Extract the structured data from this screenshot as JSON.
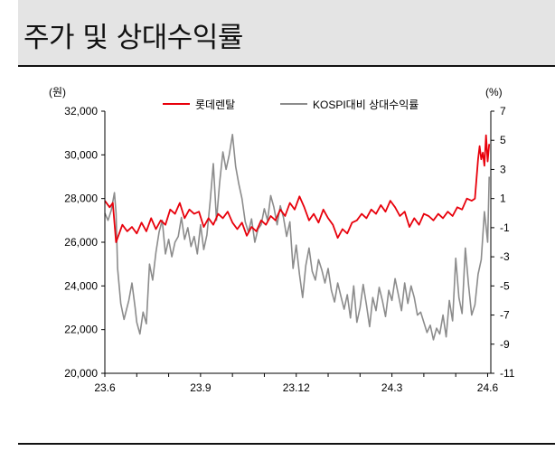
{
  "title": "주가 및 상대수익률",
  "chart_data": {
    "type": "line",
    "left_unit": "(원)",
    "right_unit": "(%)",
    "left_ylim": [
      20000,
      32000
    ],
    "right_ylim": [
      -11,
      7
    ],
    "left_ticks": [
      20000,
      22000,
      24000,
      26000,
      28000,
      30000,
      32000
    ],
    "left_tick_labels": [
      "20,000",
      "22,000",
      "24,000",
      "26,000",
      "28,000",
      "30,000",
      "32,000"
    ],
    "right_ticks": [
      7,
      5,
      3,
      1,
      -1,
      -3,
      -5,
      -7,
      -9,
      -11
    ],
    "right_tick_labels": [
      "7",
      "5",
      "3",
      "1",
      "-1",
      "-3",
      "-5",
      "-7",
      "-9",
      "-11"
    ],
    "x_ticks": [
      "23.6",
      "23.9",
      "23.12",
      "24.3",
      "24.6"
    ],
    "x_tick_positions": [
      0,
      3,
      6,
      9,
      12
    ],
    "x_range": [
      0,
      12.1
    ],
    "legend_position": "top",
    "grid": false,
    "series": [
      {
        "name": "롯데렌탈",
        "axis": "left",
        "color": "#e8000b",
        "x": [
          0,
          0.15,
          0.25,
          0.35,
          0.45,
          0.55,
          0.7,
          0.85,
          1.0,
          1.15,
          1.3,
          1.45,
          1.6,
          1.75,
          1.9,
          2.05,
          2.2,
          2.35,
          2.5,
          2.65,
          2.8,
          2.95,
          3.1,
          3.25,
          3.4,
          3.55,
          3.7,
          3.85,
          4.0,
          4.15,
          4.3,
          4.45,
          4.6,
          4.75,
          4.9,
          5.05,
          5.2,
          5.35,
          5.5,
          5.65,
          5.8,
          5.95,
          6.1,
          6.25,
          6.4,
          6.55,
          6.7,
          6.85,
          7.0,
          7.15,
          7.3,
          7.45,
          7.6,
          7.75,
          7.9,
          8.05,
          8.2,
          8.35,
          8.5,
          8.65,
          8.8,
          8.95,
          9.1,
          9.25,
          9.4,
          9.55,
          9.7,
          9.85,
          10.0,
          10.15,
          10.3,
          10.45,
          10.6,
          10.75,
          10.9,
          11.05,
          11.2,
          11.35,
          11.5,
          11.6,
          11.7,
          11.75,
          11.8,
          11.85,
          11.9,
          11.95,
          12.0,
          12.05
        ],
        "values": [
          27900,
          27600,
          27800,
          26000,
          26400,
          26800,
          26500,
          26700,
          26400,
          26900,
          26500,
          27100,
          26600,
          27000,
          26800,
          27500,
          27300,
          27800,
          27100,
          27500,
          27300,
          27400,
          26700,
          27100,
          26800,
          27300,
          27100,
          27400,
          26900,
          26600,
          26900,
          26300,
          26700,
          26500,
          27000,
          26800,
          27200,
          27000,
          27500,
          27200,
          27800,
          27500,
          28100,
          27600,
          27000,
          27300,
          26900,
          27500,
          27100,
          26800,
          26200,
          26600,
          26400,
          26900,
          27000,
          27300,
          27100,
          27500,
          27300,
          27700,
          27400,
          27900,
          27600,
          27200,
          27400,
          26700,
          27100,
          26800,
          27300,
          27200,
          27000,
          27300,
          27100,
          27400,
          27200,
          27600,
          27500,
          28000,
          27900,
          28000,
          29800,
          30400,
          29800,
          30100,
          29500,
          30900,
          29700,
          30500
        ]
      },
      {
        "name": "KOSPI대비 상대수익률",
        "axis": "right",
        "color": "#8c8c8c",
        "x": [
          0,
          0.1,
          0.2,
          0.3,
          0.35,
          0.4,
          0.5,
          0.6,
          0.75,
          0.85,
          0.95,
          1.0,
          1.1,
          1.2,
          1.3,
          1.4,
          1.5,
          1.6,
          1.7,
          1.8,
          1.9,
          2.0,
          2.1,
          2.2,
          2.3,
          2.4,
          2.5,
          2.6,
          2.7,
          2.8,
          2.9,
          3.0,
          3.1,
          3.2,
          3.3,
          3.4,
          3.5,
          3.6,
          3.7,
          3.8,
          3.9,
          4.0,
          4.1,
          4.2,
          4.3,
          4.4,
          4.5,
          4.6,
          4.7,
          4.8,
          4.9,
          5.0,
          5.1,
          5.2,
          5.3,
          5.4,
          5.5,
          5.6,
          5.7,
          5.8,
          5.9,
          6.0,
          6.1,
          6.2,
          6.3,
          6.4,
          6.5,
          6.6,
          6.7,
          6.8,
          6.9,
          7.0,
          7.1,
          7.2,
          7.3,
          7.4,
          7.5,
          7.6,
          7.7,
          7.8,
          7.9,
          8.0,
          8.1,
          8.2,
          8.3,
          8.4,
          8.5,
          8.6,
          8.7,
          8.8,
          8.9,
          9.0,
          9.1,
          9.2,
          9.3,
          9.4,
          9.5,
          9.6,
          9.7,
          9.8,
          9.9,
          10.0,
          10.1,
          10.2,
          10.3,
          10.4,
          10.5,
          10.6,
          10.7,
          10.8,
          10.9,
          11.0,
          11.1,
          11.2,
          11.3,
          11.4,
          11.5,
          11.6,
          11.7,
          11.8,
          11.9,
          11.95,
          12.0,
          12.05
        ],
        "values": [
          0,
          -0.5,
          0.2,
          1.4,
          0,
          -3.8,
          -6.2,
          -7.3,
          -6.0,
          -4.8,
          -6.5,
          -7.5,
          -8.3,
          -6.8,
          -7.6,
          -3.5,
          -4.6,
          -2.7,
          -1.3,
          -0.5,
          -2.8,
          -1.8,
          -3.0,
          -2.0,
          -1.6,
          -0.3,
          -1.8,
          -1.0,
          -2.3,
          -1.6,
          -2.8,
          -0.8,
          -2.5,
          -1.5,
          0.8,
          3.4,
          -0.5,
          2.1,
          4.2,
          3.0,
          4.0,
          5.4,
          3.2,
          2.0,
          1.0,
          -0.6,
          -1.3,
          -0.4,
          -2.0,
          -1.1,
          -0.8,
          0.3,
          -0.5,
          1.2,
          0.4,
          -0.8,
          0.5,
          -0.3,
          -1.6,
          -0.6,
          -3.8,
          -2.2,
          -4.2,
          -5.8,
          -3.6,
          -2.4,
          -4.0,
          -4.6,
          -3.2,
          -3.9,
          -4.8,
          -3.8,
          -5.3,
          -6.1,
          -4.8,
          -5.7,
          -6.6,
          -5.6,
          -7.2,
          -5.0,
          -7.5,
          -6.5,
          -4.9,
          -6.3,
          -7.8,
          -5.8,
          -6.7,
          -5.1,
          -6.0,
          -7.1,
          -5.3,
          -6.0,
          -4.5,
          -5.6,
          -6.7,
          -4.8,
          -6.2,
          -5.0,
          -5.8,
          -7.0,
          -6.8,
          -7.5,
          -8.2,
          -7.7,
          -8.7,
          -7.9,
          -8.3,
          -7.0,
          -8.5,
          -6.0,
          -7.4,
          -3.1,
          -5.8,
          -6.9,
          -2.4,
          -4.9,
          -7.0,
          -6.3,
          -4.2,
          -3.2,
          0.1,
          -0.9,
          -2.0,
          2.5
        ]
      }
    ]
  }
}
